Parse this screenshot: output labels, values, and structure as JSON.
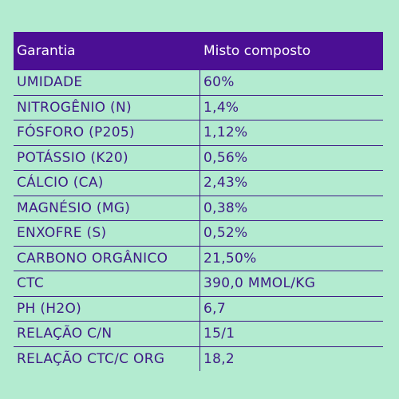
{
  "header": {
    "col1": "Garantia",
    "col2": "Misto composto"
  },
  "rows": [
    {
      "label": "UMIDADE",
      "value": "60%"
    },
    {
      "label": "NITROGÊNIO (N)",
      "value": "1,4%"
    },
    {
      "label": "FÓSFORO (P205)",
      "value": "1,12%"
    },
    {
      "label": "POTÁSSIO (K20)",
      "value": "0,56%"
    },
    {
      "label": "CÁLCIO (CA)",
      "value": "2,43%"
    },
    {
      "label": "MAGNÉSIO (MG)",
      "value": "0,38%"
    },
    {
      "label": "ENXOFRE (S)",
      "value": "0,52%"
    },
    {
      "label": "CARBONO ORGÂNICO",
      "value": "21,50%"
    },
    {
      "label": "CTC",
      "value": "390,0 MMOL/KG"
    },
    {
      "label": "PH (H2O)",
      "value": "6,7"
    },
    {
      "label": "RELAÇÃO C/N",
      "value": "15/1"
    },
    {
      "label": "RELAÇÃO CTC/C ORG",
      "value": "18,2"
    }
  ],
  "colors": {
    "background": "#b3ebd0",
    "header_bg": "#4b0f94",
    "header_text": "#ffffff",
    "body_text": "#3f1a86"
  }
}
